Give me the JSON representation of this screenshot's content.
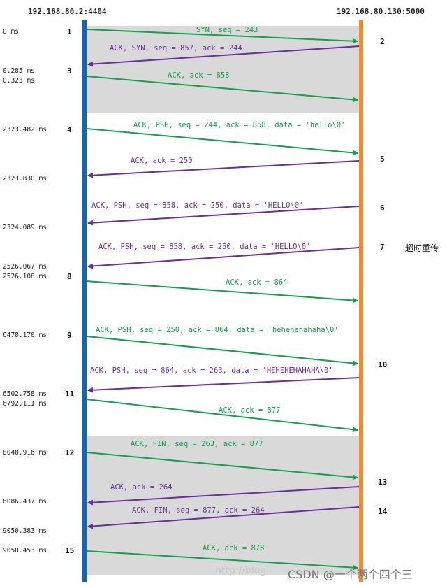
{
  "hosts": {
    "left": "192.168.80.2:4404",
    "right": "192.168.80.130:5000"
  },
  "colors": {
    "left_line": "#1565b0",
    "right_line": "#f08a30",
    "green": "#14a04a",
    "purple": "#6a2f9c",
    "shade": "#d9d9d9"
  },
  "messages": [
    {
      "num_left": "1",
      "num_right": "2",
      "dir": "right",
      "color": "green",
      "text": "SYN, seq = 243"
    },
    {
      "num_left": "3",
      "num_right": "2",
      "dir": "left",
      "color": "purple",
      "text": "ACK, SYN, seq = 857, ack = 244"
    },
    {
      "num_left": "3",
      "num_right": "",
      "dir": "right",
      "color": "green",
      "text": "ACK, ack = 858"
    },
    {
      "num_left": "4",
      "num_right": "5",
      "dir": "right",
      "color": "green",
      "text": "ACK, PSH, seq = 244, ack = 858, data = 'hello\\0'"
    },
    {
      "num_left": "",
      "num_right": "5",
      "dir": "left",
      "color": "purple",
      "text": "ACK, ack = 250"
    },
    {
      "num_left": "",
      "num_right": "6",
      "dir": "left",
      "color": "purple",
      "text": "ACK, PSH, seq = 858, ack = 250, data = 'HELLO\\0'"
    },
    {
      "num_left": "",
      "num_right": "7",
      "dir": "left",
      "color": "purple",
      "text": "ACK, PSH, seq = 858, ack = 250, data = 'HELLO\\0'"
    },
    {
      "num_left": "8",
      "num_right": "",
      "dir": "right",
      "color": "green",
      "text": "ACK, ack = 864"
    },
    {
      "num_left": "9",
      "num_right": "10",
      "dir": "right",
      "color": "green",
      "text": "ACK, PSH, seq = 250, ack = 864, data = 'hehehehahaha\\0'"
    },
    {
      "num_left": "11",
      "num_right": "10",
      "dir": "left",
      "color": "purple",
      "text": "ACK, PSH, seq = 864, ack = 263, data = 'HEHEHEHAHAHA\\0'"
    },
    {
      "num_left": "11",
      "num_right": "",
      "dir": "right",
      "color": "green",
      "text": "ACK, ack = 877"
    },
    {
      "num_left": "12",
      "num_right": "13",
      "dir": "right",
      "color": "green",
      "text": "ACK, FIN, seq = 263, ack = 877"
    },
    {
      "num_left": "",
      "num_right": "13",
      "dir": "left",
      "color": "purple",
      "text": "ACK, ack = 264"
    },
    {
      "num_left": "",
      "num_right": "14",
      "dir": "left",
      "color": "purple",
      "text": "ACK, FIN, seq = 877, ack = 264"
    },
    {
      "num_left": "15",
      "num_right": "",
      "dir": "right",
      "color": "green",
      "text": "ACK, ack = 878"
    }
  ],
  "times": [
    "0 ms",
    "0.285 ms",
    "0.323 ms",
    "2323.482 ms",
    "2323.830 ms",
    "2324.089 ms",
    "2526.067 ms",
    "2526.108 ms",
    "6478.170 ms",
    "6502.758 ms",
    "6792.111 ms",
    "8048.916 ms",
    "8086.437 ms",
    "9050.383 ms",
    "9050.453 ms"
  ],
  "labels": {
    "n1": "1",
    "n2": "2",
    "n3": "3",
    "n4": "4",
    "n5": "5",
    "n6": "6",
    "n7": "7",
    "n8": "8",
    "n9": "9",
    "n10": "10",
    "n11": "11",
    "n12": "12",
    "n13": "13",
    "n14": "14",
    "n15": "15"
  },
  "note": "超时重传",
  "watermark": "http://blog",
  "csdn": "CSDN @一个两个四个三"
}
